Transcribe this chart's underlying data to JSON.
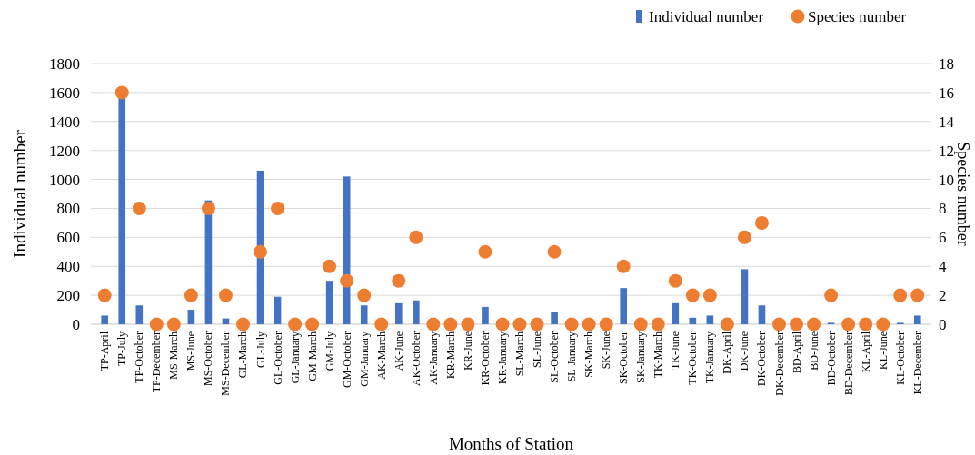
{
  "chart_data": {
    "type": "bar",
    "xlabel": "Months of Station",
    "ylabel": "Individual number",
    "y2label": "Species number",
    "categories": [
      "TP-April",
      "TP-July",
      "TP-October",
      "TP-December",
      "MS-March",
      "MS-June",
      "MS-October",
      "MS-December",
      "GL-March",
      "GL-July",
      "GL-October",
      "GL-January",
      "GM-March",
      "GM-July",
      "GM-October",
      "GM-January",
      "AK-March",
      "AK-June",
      "AK-October",
      "AK-January",
      "KR-March",
      "KR-June",
      "KR-October",
      "KR-January",
      "SL-March",
      "SL-June",
      "SL-October",
      "SL-January",
      "SK-March",
      "SK-June",
      "SK-October",
      "SK-January",
      "TK-March",
      "TK-June",
      "TK-October",
      "TK-January",
      "DK-April",
      "DK-June",
      "DK-October",
      "DK-December",
      "BD-April",
      "BD-June",
      "BD-October",
      "BD-December",
      "KL-April",
      "KL-June",
      "KL-October",
      "KL-December"
    ],
    "series": [
      {
        "name": "Individual number",
        "color": "#4472c4",
        "values": [
          60,
          1570,
          130,
          0,
          0,
          100,
          855,
          40,
          0,
          1060,
          190,
          0,
          0,
          300,
          1020,
          130,
          0,
          145,
          165,
          0,
          0,
          0,
          120,
          0,
          0,
          0,
          85,
          0,
          0,
          0,
          250,
          0,
          0,
          145,
          45,
          60,
          0,
          380,
          130,
          0,
          0,
          0,
          10,
          0,
          0,
          0,
          10,
          60
        ]
      },
      {
        "name": "Species number",
        "type": "scatter",
        "axis": "y2",
        "color": "#ed7d31",
        "marker": "circle",
        "values": [
          2,
          16,
          8,
          0,
          0,
          2,
          8,
          2,
          0,
          5,
          8,
          0,
          0,
          4,
          3,
          2,
          0,
          3,
          6,
          0,
          0,
          0,
          5,
          0,
          0,
          0,
          5,
          0,
          0,
          0,
          4,
          0,
          0,
          3,
          2,
          2,
          0,
          6,
          7,
          0,
          0,
          0,
          2,
          0,
          0,
          0,
          2,
          2
        ]
      }
    ],
    "ylim": [
      0,
      1800
    ],
    "yticks": [
      0,
      200,
      400,
      600,
      800,
      1000,
      1200,
      1400,
      1600,
      1800
    ],
    "y2lim": [
      0,
      18
    ],
    "y2ticks": [
      0,
      2,
      4,
      6,
      8,
      10,
      12,
      14,
      16,
      18
    ],
    "grid": "y",
    "legend": "top right"
  }
}
